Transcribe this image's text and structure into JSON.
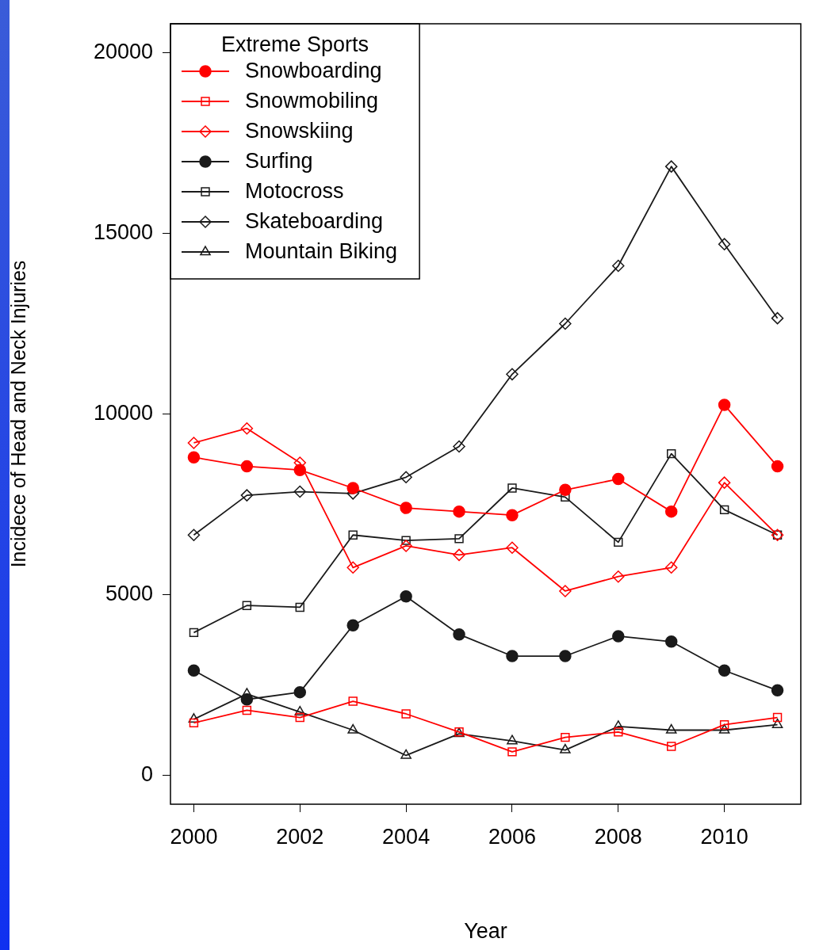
{
  "chart_data": {
    "type": "line",
    "xlabel": "Year",
    "ylabel": "Incidece of Head and Neck Injuries",
    "legend_title": "Extreme Sports",
    "legend": "top left",
    "grid": false,
    "line_style": "solid",
    "x": [
      2000,
      2001,
      2002,
      2003,
      2004,
      2005,
      2006,
      2007,
      2008,
      2009,
      2010,
      2011
    ],
    "xlim": [
      1999.56,
      2011.44
    ],
    "xticks": [
      2000,
      2002,
      2004,
      2006,
      2008,
      2010
    ],
    "ylim": [
      -800,
      20800
    ],
    "yticks": [
      0,
      5000,
      10000,
      15000,
      20000
    ],
    "series": [
      {
        "name": "Snowboarding",
        "color": "#ff0000",
        "marker": "circle",
        "values": [
          8800,
          8550,
          8450,
          7950,
          7400,
          7300,
          7200,
          7900,
          8200,
          7300,
          10250,
          8550
        ]
      },
      {
        "name": "Snowmobiling",
        "color": "#ff0000",
        "marker": "square",
        "values": [
          1450,
          1800,
          1600,
          2050,
          1700,
          1200,
          650,
          1050,
          1200,
          800,
          1400,
          1600
        ]
      },
      {
        "name": "Snowskiing",
        "color": "#ff0000",
        "marker": "diamond",
        "values": [
          9200,
          9600,
          8650,
          5750,
          6350,
          6100,
          6300,
          5100,
          5500,
          5750,
          8100,
          6650
        ]
      },
      {
        "name": "Surfing",
        "color": "#1a1a1a",
        "marker": "circle",
        "values": [
          2900,
          2100,
          2300,
          4150,
          4950,
          3900,
          3300,
          3300,
          3850,
          3700,
          2900,
          2350
        ]
      },
      {
        "name": "Motocross",
        "color": "#1a1a1a",
        "marker": "square",
        "values": [
          3950,
          4700,
          4650,
          6650,
          6500,
          6550,
          7950,
          7700,
          6450,
          8900,
          7350,
          6650
        ]
      },
      {
        "name": "Skateboarding",
        "color": "#1a1a1a",
        "marker": "diamond",
        "values": [
          6650,
          7750,
          7850,
          7800,
          8250,
          9100,
          11100,
          12500,
          14100,
          16850,
          14700,
          12650
        ]
      },
      {
        "name": "Mountain Biking",
        "color": "#1a1a1a",
        "marker": "triangle",
        "values": [
          1550,
          2250,
          1750,
          1250,
          550,
          1150,
          950,
          700,
          1350,
          1250,
          1250,
          1400
        ]
      }
    ]
  }
}
